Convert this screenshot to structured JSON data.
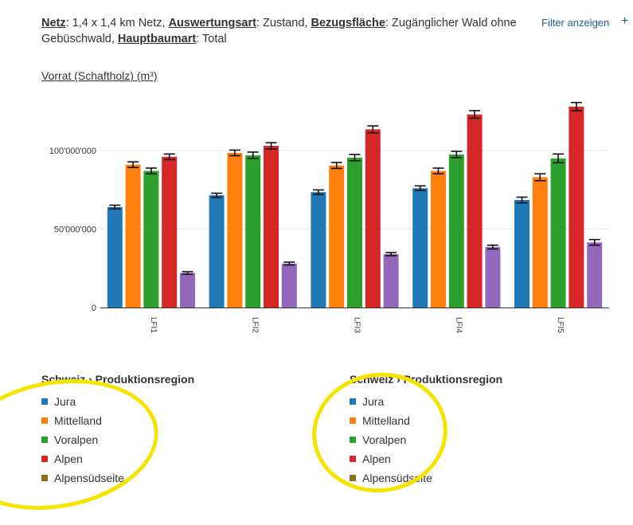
{
  "filter": {
    "netz_label": "Netz",
    "netz_value": "1,4 x 1,4 km Netz",
    "auswertung_label": "Auswertungsart",
    "auswertung_value": "Zustand",
    "bezug_label": "Bezugsfläche",
    "bezug_value": "Zugänglicher Wald ohne Gebüschwald",
    "hauptbaum_label": "Hauptbaumart",
    "hauptbaum_value": "Total",
    "show_filter_link": "Filter anzeigen",
    "plus": "+"
  },
  "chart_title": "Vorrat (Schaftholz) (m³)",
  "legends": [
    {
      "title": "Schweiz › Produktionsregion",
      "items": [
        "Jura",
        "Mittelland",
        "Voralpen",
        "Alpen",
        "Alpensüdseite"
      ]
    },
    {
      "title": "Schweiz › Produktionsregion",
      "items": [
        "Jura",
        "Mittelland",
        "Voralpen",
        "Alpen",
        "Alpensüdseite"
      ]
    }
  ],
  "colors": {
    "Jura": "#1f77b4",
    "Mittelland": "#ff7f0e",
    "Voralpen": "#2ca02c",
    "Alpen": "#d62728",
    "Alpensüdseite": "#9467bd",
    "legend_alpensuedseite_swatch": "#8c6d1f",
    "highlight": "#f5e400"
  },
  "chart_data": {
    "type": "bar",
    "title": "Vorrat (Schaftholz) (m³)",
    "categories": [
      "LFI1",
      "LFI2",
      "LFI3",
      "LFI4",
      "LFI5"
    ],
    "ylim": [
      0,
      135000000
    ],
    "yticks": [
      {
        "value": 0,
        "label": "0"
      },
      {
        "value": 50000000,
        "label": "50'000'000"
      },
      {
        "value": 100000000,
        "label": "100'000'000"
      }
    ],
    "grid": true,
    "series": [
      {
        "name": "Jura",
        "values": [
          64000000,
          71500000,
          73500000,
          76000000,
          68500000
        ],
        "errors": [
          1200000,
          1300000,
          1400000,
          1500000,
          1800000
        ]
      },
      {
        "name": "Mittelland",
        "values": [
          91000000,
          98500000,
          90500000,
          87000000,
          83000000
        ],
        "errors": [
          1800000,
          1800000,
          1900000,
          1800000,
          2200000
        ]
      },
      {
        "name": "Voralpen",
        "values": [
          87000000,
          97000000,
          95500000,
          97500000,
          95000000
        ],
        "errors": [
          1800000,
          2000000,
          2000000,
          2000000,
          2800000
        ]
      },
      {
        "name": "Alpen",
        "values": [
          96000000,
          103000000,
          113500000,
          123000000,
          128000000
        ],
        "errors": [
          1800000,
          2000000,
          2200000,
          2400000,
          2600000
        ]
      },
      {
        "name": "Alpensüdseite",
        "values": [
          22000000,
          28000000,
          34000000,
          38500000,
          41500000
        ],
        "errors": [
          800000,
          900000,
          1000000,
          1200000,
          1800000
        ]
      }
    ]
  }
}
